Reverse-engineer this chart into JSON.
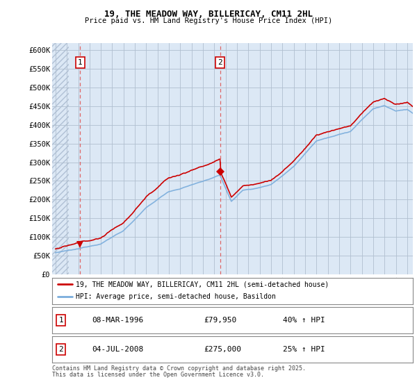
{
  "title1": "19, THE MEADOW WAY, BILLERICAY, CM11 2HL",
  "title2": "Price paid vs. HM Land Registry's House Price Index (HPI)",
  "ylabel_ticks": [
    "£0",
    "£50K",
    "£100K",
    "£150K",
    "£200K",
    "£250K",
    "£300K",
    "£350K",
    "£400K",
    "£450K",
    "£500K",
    "£550K",
    "£600K"
  ],
  "ytick_vals": [
    0,
    50000,
    100000,
    150000,
    200000,
    250000,
    300000,
    350000,
    400000,
    450000,
    500000,
    550000,
    600000
  ],
  "xlim": [
    1993.7,
    2025.5
  ],
  "ylim": [
    0,
    620000
  ],
  "sale1_x": 1996.18,
  "sale1_y": 79950,
  "sale2_x": 2008.5,
  "sale2_y": 275000,
  "legend_line1": "19, THE MEADOW WAY, BILLERICAY, CM11 2HL (semi-detached house)",
  "legend_line2": "HPI: Average price, semi-detached house, Basildon",
  "footnote1": "Contains HM Land Registry data © Crown copyright and database right 2025.",
  "footnote2": "This data is licensed under the Open Government Licence v3.0.",
  "bg_color": "#dce8f5",
  "hatch_color": "#c8d8ea",
  "grid_color": "#b0bfcf",
  "hpi_color": "#7aaddc",
  "price_color": "#cc0000",
  "vline_color": "#dd6666"
}
